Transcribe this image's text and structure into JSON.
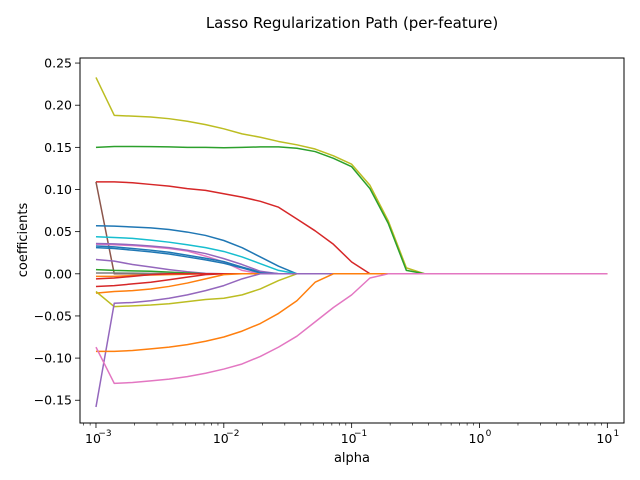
{
  "chart_data": {
    "type": "line",
    "title": "Lasso Regularization Path (per-feature)",
    "xlabel": "alpha",
    "ylabel": "coefficients",
    "xscale": "log",
    "xlim": [
      0.00075,
      13.5
    ],
    "ylim": [
      -0.177,
      0.256
    ],
    "grid": false,
    "x_ticks": [
      {
        "value": 0.001,
        "base": "10",
        "exp": "−3"
      },
      {
        "value": 0.01,
        "base": "10",
        "exp": "−2"
      },
      {
        "value": 0.1,
        "base": "10",
        "exp": "−1"
      },
      {
        "value": 1,
        "base": "10",
        "exp": "0"
      },
      {
        "value": 10,
        "base": "10",
        "exp": "1"
      }
    ],
    "y_ticks": [
      {
        "value": -0.15,
        "label": "−0.15"
      },
      {
        "value": -0.1,
        "label": "−0.10"
      },
      {
        "value": -0.05,
        "label": "−0.05"
      },
      {
        "value": 0.0,
        "label": "0.00"
      },
      {
        "value": 0.05,
        "label": "0.05"
      },
      {
        "value": 0.1,
        "label": "0.10"
      },
      {
        "value": 0.15,
        "label": "0.15"
      },
      {
        "value": 0.2,
        "label": "0.20"
      },
      {
        "value": 0.25,
        "label": "0.25"
      }
    ],
    "alphas": [
      0.001,
      0.00139,
      0.00193,
      0.00268,
      0.00373,
      0.00518,
      0.0072,
      0.01,
      0.0139,
      0.0193,
      0.0268,
      0.0373,
      0.0518,
      0.072,
      0.1,
      0.139,
      0.193,
      0.268,
      0.373,
      0.518,
      0.72,
      1,
      1.39,
      1.93,
      2.68,
      3.73,
      5.18,
      7.2,
      10
    ],
    "series": [
      {
        "color": "#bcbd22",
        "values": [
          0.233,
          0.188,
          0.187,
          0.186,
          0.184,
          0.181,
          0.177,
          0.172,
          0.166,
          0.162,
          0.157,
          0.153,
          0.148,
          0.14,
          0.13,
          0.105,
          0.063,
          0.007,
          0,
          0,
          0,
          0,
          0,
          0,
          0,
          0,
          0,
          0,
          0
        ]
      },
      {
        "color": "#2ca02c",
        "values": [
          0.15,
          0.151,
          0.151,
          0.1508,
          0.1505,
          0.15,
          0.15,
          0.1495,
          0.15,
          0.1505,
          0.1505,
          0.149,
          0.145,
          0.137,
          0.127,
          0.101,
          0.06,
          0.004,
          0,
          0,
          0,
          0,
          0,
          0,
          0,
          0,
          0,
          0,
          0
        ]
      },
      {
        "color": "#d62728",
        "values": [
          0.109,
          0.109,
          0.108,
          0.106,
          0.104,
          0.101,
          0.099,
          0.095,
          0.091,
          0.086,
          0.079,
          0.065,
          0.051,
          0.035,
          0.014,
          0,
          0,
          0,
          0,
          0,
          0,
          0,
          0,
          0,
          0,
          0,
          0,
          0,
          0
        ]
      },
      {
        "color": "#8c564b",
        "values": [
          0.109,
          0,
          0,
          0,
          0,
          0,
          0,
          0,
          0,
          0,
          0,
          0,
          0,
          0,
          0,
          0,
          0,
          0,
          0,
          0,
          0,
          0,
          0,
          0,
          0,
          0,
          0,
          0,
          0
        ]
      },
      {
        "color": "#1f77b4",
        "values": [
          0.057,
          0.0565,
          0.0555,
          0.0545,
          0.0525,
          0.0495,
          0.0455,
          0.0395,
          0.031,
          0.02,
          0.009,
          0,
          0,
          0,
          0,
          0,
          0,
          0,
          0,
          0,
          0,
          0,
          0,
          0,
          0,
          0,
          0,
          0,
          0
        ]
      },
      {
        "color": "#17becf",
        "values": [
          0.044,
          0.043,
          0.042,
          0.04,
          0.0375,
          0.0345,
          0.031,
          0.0265,
          0.02,
          0.012,
          0.004,
          0,
          0,
          0,
          0,
          0,
          0,
          0,
          0,
          0,
          0,
          0,
          0,
          0,
          0,
          0,
          0,
          0,
          0
        ]
      },
      {
        "color": "#e377c2",
        "values": [
          0.035,
          0.0345,
          0.0335,
          0.032,
          0.03,
          0.027,
          0.021,
          0.014,
          0.004,
          0,
          0,
          0,
          0,
          0,
          0,
          0,
          0,
          0,
          0,
          0,
          0,
          0,
          0,
          0,
          0,
          0,
          0,
          0,
          0
        ]
      },
      {
        "color": "#1f77b4",
        "values": [
          0.033,
          0.032,
          0.03,
          0.028,
          0.0255,
          0.022,
          0.0185,
          0.0145,
          0.008,
          0.002,
          0,
          0,
          0,
          0,
          0,
          0,
          0,
          0,
          0,
          0,
          0,
          0,
          0,
          0,
          0,
          0,
          0,
          0,
          0
        ]
      },
      {
        "color": "#9467bd",
        "values": [
          0.036,
          0.0355,
          0.0345,
          0.033,
          0.031,
          0.028,
          0.024,
          0.018,
          0.011,
          0.003,
          0,
          0,
          0,
          0,
          0,
          0,
          0,
          0,
          0,
          0,
          0,
          0,
          0,
          0,
          0,
          0,
          0,
          0,
          0
        ]
      },
      {
        "color": "#1f77b4",
        "values": [
          0.031,
          0.03,
          0.028,
          0.026,
          0.0235,
          0.02,
          0.0165,
          0.0125,
          0.007,
          0.001,
          0,
          0,
          0,
          0,
          0,
          0,
          0,
          0,
          0,
          0,
          0,
          0,
          0,
          0,
          0,
          0,
          0,
          0,
          0
        ]
      },
      {
        "color": "#9467bd",
        "values": [
          0.017,
          0.015,
          0.011,
          0.008,
          0.005,
          0.0025,
          0.0005,
          0,
          0,
          0,
          0,
          0,
          0,
          0,
          0,
          0,
          0,
          0,
          0,
          0,
          0,
          0,
          0,
          0,
          0,
          0,
          0,
          0,
          0
        ]
      },
      {
        "color": "#2ca02c",
        "values": [
          0.005,
          0.004,
          0.0035,
          0.003,
          0.002,
          0.001,
          0,
          0,
          0,
          0,
          0,
          0,
          0,
          0,
          0,
          0,
          0,
          0,
          0,
          0,
          0,
          0,
          0,
          0,
          0,
          0,
          0,
          0,
          0
        ]
      },
      {
        "color": "#7f7f7f",
        "values": [
          0.001,
          0.001,
          0.0008,
          0.0005,
          0.0003,
          0.0001,
          0,
          0,
          0,
          0,
          0,
          0,
          0,
          0,
          0,
          0,
          0,
          0,
          0,
          0,
          0,
          0,
          0,
          0,
          0,
          0,
          0,
          0,
          0
        ]
      },
      {
        "color": "#ff7f0e",
        "values": [
          -0.003,
          -0.003,
          -0.002,
          -0.0015,
          -0.001,
          -0.0005,
          0,
          0,
          0,
          0,
          0,
          0,
          0,
          0,
          0,
          0,
          0,
          0,
          0,
          0,
          0,
          0,
          0,
          0,
          0,
          0,
          0,
          0,
          0
        ]
      },
      {
        "color": "#d62728",
        "values": [
          -0.006,
          -0.005,
          -0.003,
          -0.001,
          0,
          0,
          0,
          0,
          0,
          0,
          0,
          0,
          0,
          0,
          0,
          0,
          0,
          0,
          0,
          0,
          0,
          0,
          0,
          0,
          0,
          0,
          0,
          0,
          0
        ]
      },
      {
        "color": "#d62728",
        "values": [
          -0.015,
          -0.014,
          -0.012,
          -0.01,
          -0.007,
          -0.004,
          -0.001,
          0,
          0,
          0,
          0,
          0,
          0,
          0,
          0,
          0,
          0,
          0,
          0,
          0,
          0,
          0,
          0,
          0,
          0,
          0,
          0,
          0,
          0
        ]
      },
      {
        "color": "#ff7f0e",
        "values": [
          -0.023,
          -0.021,
          -0.02,
          -0.018,
          -0.015,
          -0.011,
          -0.006,
          -0.001,
          0,
          0,
          0,
          0,
          0,
          0,
          0,
          0,
          0,
          0,
          0,
          0,
          0,
          0,
          0,
          0,
          0,
          0,
          0,
          0,
          0
        ]
      },
      {
        "color": "#bcbd22",
        "values": [
          -0.021,
          -0.039,
          -0.038,
          -0.037,
          -0.0355,
          -0.033,
          -0.0305,
          -0.029,
          -0.025,
          -0.018,
          -0.008,
          0,
          0,
          0,
          0,
          0,
          0,
          0,
          0,
          0,
          0,
          0,
          0,
          0,
          0,
          0,
          0,
          0,
          0
        ]
      },
      {
        "color": "#9467bd",
        "values": [
          -0.158,
          -0.035,
          -0.034,
          -0.032,
          -0.029,
          -0.025,
          -0.02,
          -0.014,
          -0.006,
          0,
          0,
          0,
          0,
          0,
          0,
          0,
          0,
          0,
          0,
          0,
          0,
          0,
          0,
          0,
          0,
          0,
          0,
          0,
          0
        ]
      },
      {
        "color": "#ff7f0e",
        "values": [
          -0.092,
          -0.092,
          -0.091,
          -0.089,
          -0.087,
          -0.084,
          -0.08,
          -0.075,
          -0.068,
          -0.059,
          -0.047,
          -0.032,
          -0.01,
          0,
          0,
          0,
          0,
          0,
          0,
          0,
          0,
          0,
          0,
          0,
          0,
          0,
          0,
          0,
          0
        ]
      },
      {
        "color": "#e377c2",
        "values": [
          -0.087,
          -0.13,
          -0.129,
          -0.127,
          -0.125,
          -0.122,
          -0.118,
          -0.113,
          -0.107,
          -0.098,
          -0.087,
          -0.074,
          -0.057,
          -0.04,
          -0.025,
          -0.005,
          0,
          0,
          0,
          0,
          0,
          0,
          0,
          0,
          0,
          0,
          0,
          0,
          0
        ]
      }
    ]
  }
}
